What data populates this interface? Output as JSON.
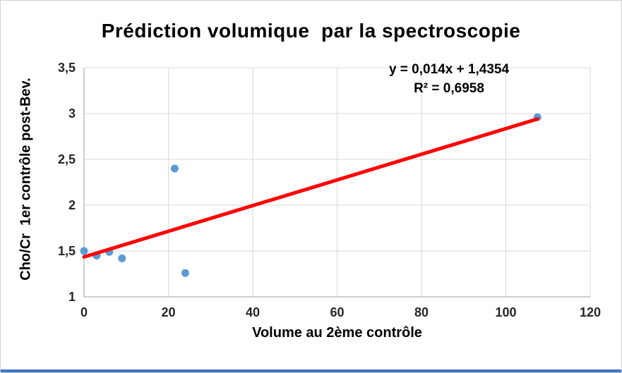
{
  "chart_data": {
    "type": "scatter",
    "title": "Prédiction volumique  par la spectroscopie",
    "xlabel": "Volume au 2ème contrôle",
    "ylabel": "Cho/Cr  1er contrôle post-Bev.",
    "xlim": [
      0,
      120
    ],
    "ylim": [
      1,
      3.5
    ],
    "x_ticks": [
      0,
      20,
      40,
      60,
      80,
      100,
      120
    ],
    "x_tick_labels": [
      "0",
      "20",
      "40",
      "60",
      "80",
      "100",
      "120"
    ],
    "y_ticks": [
      1,
      1.5,
      2,
      2.5,
      3,
      3.5
    ],
    "y_tick_labels": [
      "1",
      "1,5",
      "2",
      "2,5",
      "3",
      "3,5"
    ],
    "grid": true,
    "legend": "none",
    "points": [
      [
        0,
        1.5
      ],
      [
        3,
        1.45
      ],
      [
        6,
        1.49
      ],
      [
        9,
        1.42
      ],
      [
        21.5,
        2.4
      ],
      [
        24,
        1.26
      ],
      [
        107.5,
        2.96
      ]
    ],
    "trendline": {
      "slope": 0.014,
      "intercept": 1.4354,
      "x_start": 0,
      "x_end": 107.5
    },
    "annotation": {
      "line1": "y = 0,014x + 1,4354",
      "line2": "R² = 0,6958"
    },
    "colors": {
      "point": "#5b9bd5",
      "trend": "#ff0000",
      "grid": "#d9d9d9",
      "axis": "#bfbfbf",
      "tick_text": "#262626",
      "accent_bottom": "#4472c4"
    }
  }
}
